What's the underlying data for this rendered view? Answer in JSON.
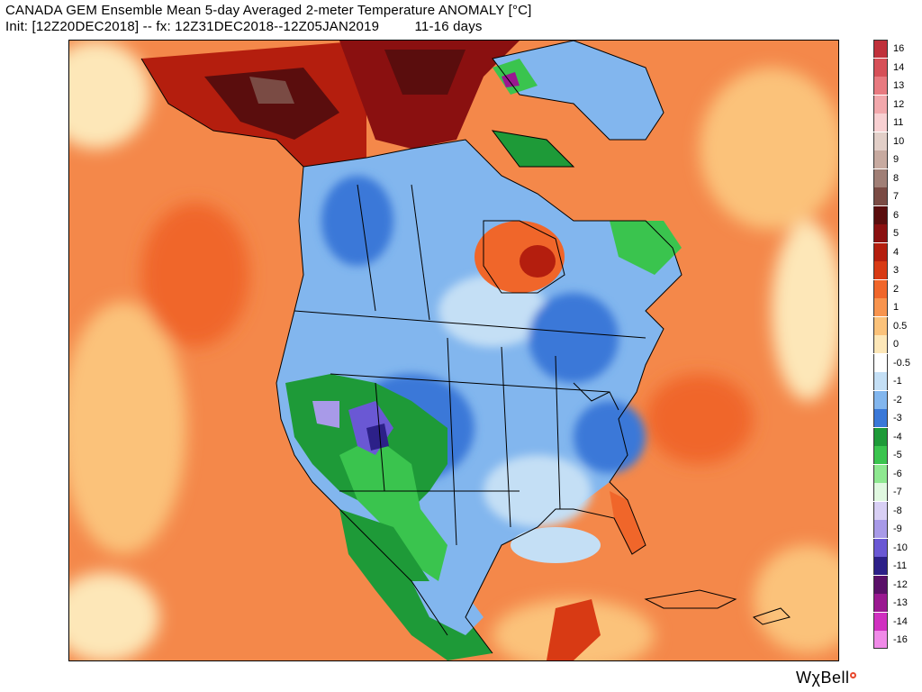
{
  "header": {
    "title": "CANADA GEM Ensemble Mean 5-day Averaged 2-meter Temperature ANOMALY [°C]",
    "subtitle": "Init: [12Z20DEC2018] -- fx: 12Z31DEC2018--12Z05JAN2019         11-16 days"
  },
  "logo": {
    "text": "WχBell"
  },
  "legend": {
    "items": [
      {
        "label": "16",
        "color": "#c0303a"
      },
      {
        "label": "14",
        "color": "#d65058"
      },
      {
        "label": "13",
        "color": "#e87a80"
      },
      {
        "label": "12",
        "color": "#f2a8ac"
      },
      {
        "label": "11",
        "color": "#f8d0d2"
      },
      {
        "label": "10",
        "color": "#e2cfc8"
      },
      {
        "label": "9",
        "color": "#c7aaa0"
      },
      {
        "label": "8",
        "color": "#a07f76"
      },
      {
        "label": "7",
        "color": "#7a4b44"
      },
      {
        "label": "6",
        "color": "#5a0d0d"
      },
      {
        "label": "5",
        "color": "#8a1010"
      },
      {
        "label": "4",
        "color": "#b41e0e"
      },
      {
        "label": "3",
        "color": "#d83a14"
      },
      {
        "label": "2",
        "color": "#f0662a"
      },
      {
        "label": "1",
        "color": "#f8944e"
      },
      {
        "label": "0.5",
        "color": "#fbc27a"
      },
      {
        "label": "0",
        "color": "#fde7b8"
      },
      {
        "label": "-0.5",
        "color": "#ffffff"
      },
      {
        "label": "-1",
        "color": "#c4dff5"
      },
      {
        "label": "-2",
        "color": "#82b6ee"
      },
      {
        "label": "-3",
        "color": "#3a78d8"
      },
      {
        "label": "-4",
        "color": "#1e9a38"
      },
      {
        "label": "-5",
        "color": "#3ac44e"
      },
      {
        "label": "-6",
        "color": "#8ee890"
      },
      {
        "label": "-7",
        "color": "#e0f8e0"
      },
      {
        "label": "-8",
        "color": "#d8cff4"
      },
      {
        "label": "-9",
        "color": "#a89ae8"
      },
      {
        "label": "-10",
        "color": "#6a58d4"
      },
      {
        "label": "-11",
        "color": "#2c2088"
      },
      {
        "label": "-12",
        "color": "#5a1068"
      },
      {
        "label": "-13",
        "color": "#9a1890"
      },
      {
        "label": "-14",
        "color": "#d030c0"
      },
      {
        "label": "-16",
        "color": "#f08ae8"
      }
    ]
  }
}
